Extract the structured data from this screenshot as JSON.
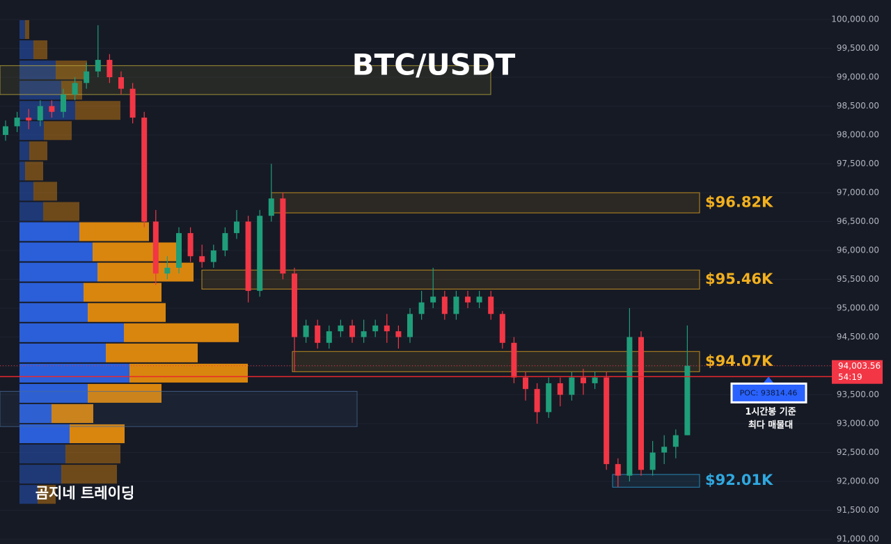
{
  "chart_data": {
    "type": "candlestick",
    "title": "BTC/USDT",
    "watermark": "곰지네 트레이딩",
    "ylim": [
      90916,
      100337
    ],
    "yticks": [
      {
        "value": 100000,
        "label": "100,000.00"
      },
      {
        "value": 99500,
        "label": "99,500.00"
      },
      {
        "value": 99000,
        "label": "99,000.00"
      },
      {
        "value": 98500,
        "label": "98,500.00"
      },
      {
        "value": 98000,
        "label": "98,000.00"
      },
      {
        "value": 97500,
        "label": "97,500.00"
      },
      {
        "value": 97000,
        "label": "97,000.00"
      },
      {
        "value": 96500,
        "label": "96,500.00"
      },
      {
        "value": 96000,
        "label": "96,000.00"
      },
      {
        "value": 95500,
        "label": "95,500.00"
      },
      {
        "value": 95000,
        "label": "95,000.00"
      },
      {
        "value": 94500,
        "label": "94,500.00"
      },
      {
        "value": 94000,
        "label": "94,000.00"
      },
      {
        "value": 93500,
        "label": "93,500.00"
      },
      {
        "value": 93000,
        "label": "93,000.00"
      },
      {
        "value": 92500,
        "label": "92,500.00"
      },
      {
        "value": 92000,
        "label": "92,000.00"
      },
      {
        "value": 91500,
        "label": "91,500.00"
      },
      {
        "value": 91000,
        "label": "91,000.00"
      }
    ],
    "grid": true,
    "up_color": "#1f9e7a",
    "down_color": "#f23645",
    "candles": {
      "open": [
        98000,
        98150,
        98300,
        98250,
        98500,
        98400,
        98700,
        98900,
        99100,
        99300,
        99000,
        98800,
        98300,
        96500,
        95600,
        95700,
        96300,
        95900,
        95800,
        96000,
        96300,
        96500,
        95300,
        96600,
        96900,
        95600,
        94500,
        94700,
        94400,
        94600,
        94700,
        94500,
        94600,
        94700,
        94600,
        94500,
        94900,
        95100,
        95200,
        94900,
        95200,
        95100,
        95200,
        94900,
        94400,
        93800,
        93600,
        93200,
        93700,
        93500,
        93800,
        93700,
        93800,
        92300,
        92100,
        94500,
        92200,
        92500,
        92600,
        92800
      ],
      "high": [
        98250,
        98400,
        98450,
        98600,
        98600,
        98800,
        99000,
        99250,
        99900,
        99400,
        99100,
        98900,
        98400,
        96700,
        95900,
        96400,
        96400,
        96100,
        96100,
        96400,
        96700,
        96600,
        96700,
        97500,
        97000,
        95700,
        94800,
        94800,
        94700,
        94800,
        94800,
        94800,
        94800,
        94900,
        94700,
        95000,
        95300,
        95700,
        95300,
        95300,
        95300,
        95300,
        95300,
        94950,
        94500,
        93900,
        93700,
        93800,
        93800,
        93900,
        93950,
        93900,
        93900,
        92400,
        95000,
        94600,
        92700,
        92800,
        92900,
        94700
      ],
      "low": [
        97900,
        98050,
        98100,
        98150,
        98300,
        98300,
        98600,
        98800,
        99000,
        98900,
        98700,
        98200,
        96400,
        95400,
        95500,
        95600,
        95800,
        95700,
        95700,
        95900,
        96200,
        95100,
        95200,
        96500,
        95500,
        93900,
        94400,
        94300,
        94300,
        94500,
        94400,
        94400,
        94500,
        94400,
        94300,
        94400,
        94800,
        95000,
        94800,
        94800,
        95000,
        95000,
        94800,
        94300,
        93700,
        93400,
        93000,
        93100,
        93300,
        93400,
        93500,
        93600,
        92200,
        91900,
        92000,
        92100,
        92100,
        92300,
        92400,
        92800
      ],
      "close": [
        98150,
        98300,
        98250,
        98500,
        98400,
        98700,
        98900,
        99100,
        99300,
        99000,
        98800,
        98300,
        96500,
        95600,
        95700,
        96300,
        95900,
        95800,
        96000,
        96300,
        96500,
        95300,
        96600,
        96900,
        95600,
        94500,
        94700,
        94400,
        94600,
        94700,
        94500,
        94600,
        94700,
        94600,
        94500,
        94900,
        95100,
        95200,
        94900,
        95200,
        95100,
        95200,
        94900,
        94400,
        93800,
        93600,
        93200,
        93700,
        93500,
        93800,
        93700,
        93800,
        92300,
        92100,
        94500,
        92200,
        92500,
        92600,
        92800,
        94003.56
      ]
    },
    "volume_profile": {
      "bins": [
        100000,
        99650,
        99300,
        98950,
        98600,
        98250,
        97900,
        97550,
        97200,
        96850,
        96500,
        96150,
        95800,
        95450,
        95100,
        94750,
        94400,
        94050,
        93700,
        93350,
        93000,
        92650,
        92300,
        91950,
        91600
      ],
      "series": [
        {
          "color": "#2b5fd9",
          "values": [
            8,
            20,
            52,
            60,
            80,
            35,
            14,
            8,
            20,
            34,
            86,
            105,
            112,
            92,
            98,
            150,
            124,
            158,
            98,
            46,
            72,
            66,
            60,
            26
          ]
        },
        {
          "color": "#d9860f",
          "values": [
            6,
            20,
            45,
            30,
            65,
            40,
            26,
            26,
            34,
            52,
            100,
            120,
            138,
            112,
            112,
            165,
            132,
            170,
            106,
            60,
            79,
            79,
            80,
            26
          ]
        }
      ]
    },
    "zones": [
      {
        "range": [
          98700,
          99200
        ],
        "color": "#c9b43a"
      },
      {
        "label": "$96.82K",
        "range": [
          96650,
          97000
        ],
        "color": "#f2b01e"
      },
      {
        "label": "$95.46K",
        "range": [
          95330,
          95660
        ],
        "color": "#f2b01e"
      },
      {
        "label": "$94.07K",
        "range": [
          93900,
          94250
        ],
        "color": "#f2b01e"
      },
      {
        "range": [
          92950,
          93560
        ],
        "color": "#4a6a9a"
      },
      {
        "label": "$92.01K",
        "range": [
          91900,
          92120
        ],
        "color": "#2fa8e0"
      }
    ],
    "poc": {
      "value": 93814.46,
      "label": "POC: 93814.46",
      "note": [
        "1시간봉 기준",
        "최다 매물대"
      ]
    },
    "current_price": {
      "value": 94003.56,
      "label": "94,003.56",
      "countdown": "54:19"
    }
  }
}
